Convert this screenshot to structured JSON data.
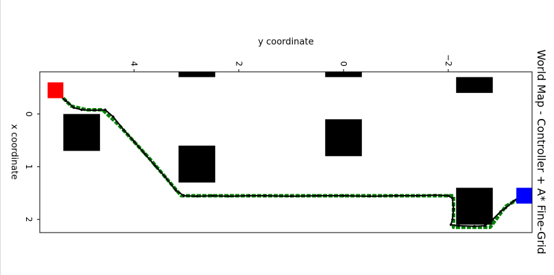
{
  "chart_data": {
    "type": "scatter",
    "title": "World Map -  Controller + A* Fine-Grid",
    "xlabel": "y coordinate",
    "ylabel": "x coordinate",
    "x_axis_inverted": true,
    "y_axis_inverted": true,
    "xlim": [
      5.8,
      -3.6
    ],
    "ylim": [
      -0.8,
      2.25
    ],
    "xticks": [
      {
        "value": 4,
        "label": "4"
      },
      {
        "value": 2,
        "label": "2"
      },
      {
        "value": 0,
        "label": "0"
      },
      {
        "value": -2,
        "label": "−2"
      }
    ],
    "yticks": [
      {
        "value": 0,
        "label": "0"
      },
      {
        "value": 1,
        "label": "1"
      },
      {
        "value": 2,
        "label": "2"
      }
    ],
    "grid": false,
    "colors": {
      "start": "#ff0000",
      "goal": "#0000ff",
      "obstacle": "#000000",
      "planned_path": "#008000",
      "actual_path": "#000000"
    },
    "start": {
      "y": 5.5,
      "x": -0.45,
      "size": 0.3
    },
    "goal": {
      "y": -3.45,
      "x": 1.55,
      "size": 0.3
    },
    "obstacles": [
      {
        "y": 5.0,
        "x": 0.35,
        "w": 0.7,
        "h": 0.7
      },
      {
        "y": 2.8,
        "x": 0.95,
        "w": 0.7,
        "h": 0.7
      },
      {
        "y": 0.0,
        "x": 0.45,
        "w": 0.7,
        "h": 0.7
      },
      {
        "y": -2.5,
        "x": 1.75,
        "w": 0.7,
        "h": 0.7
      },
      {
        "y": 2.8,
        "x": -0.75,
        "w": 0.7,
        "h": 0.1
      },
      {
        "y": 0.0,
        "x": -0.75,
        "w": 0.7,
        "h": 0.1
      },
      {
        "y": -2.5,
        "x": -0.55,
        "w": 0.7,
        "h": 0.3
      }
    ],
    "planned_path": [
      [
        5.5,
        -0.45
      ],
      [
        5.2,
        -0.15
      ],
      [
        4.9,
        -0.08
      ],
      [
        4.6,
        -0.08
      ],
      [
        4.3,
        0.2
      ],
      [
        3.7,
        0.85
      ],
      [
        3.1,
        1.55
      ],
      [
        1.0,
        1.55
      ],
      [
        -1.0,
        1.55
      ],
      [
        -2.1,
        1.55
      ],
      [
        -2.1,
        2.15
      ],
      [
        -2.8,
        2.15
      ],
      [
        -3.1,
        1.75
      ],
      [
        -3.45,
        1.55
      ]
    ],
    "actual_path": [
      [
        5.55,
        -0.45
      ],
      [
        5.3,
        -0.25
      ],
      [
        5.15,
        -0.12
      ],
      [
        5.0,
        -0.08
      ],
      [
        4.75,
        -0.07
      ],
      [
        4.55,
        -0.08
      ],
      [
        4.4,
        0.05
      ],
      [
        4.2,
        0.3
      ],
      [
        4.0,
        0.52
      ],
      [
        3.8,
        0.75
      ],
      [
        3.6,
        0.98
      ],
      [
        3.4,
        1.2
      ],
      [
        3.2,
        1.45
      ],
      [
        3.05,
        1.55
      ],
      [
        2.8,
        1.56
      ],
      [
        2.5,
        1.55
      ],
      [
        2.2,
        1.56
      ],
      [
        1.8,
        1.55
      ],
      [
        1.5,
        1.55
      ],
      [
        1.0,
        1.56
      ],
      [
        0.5,
        1.55
      ],
      [
        0.0,
        1.55
      ],
      [
        -0.5,
        1.56
      ],
      [
        -1.0,
        1.55
      ],
      [
        -1.4,
        1.55
      ],
      [
        -1.75,
        1.54
      ],
      [
        -2.0,
        1.55
      ],
      [
        -2.08,
        1.6
      ],
      [
        -2.1,
        1.8
      ],
      [
        -2.08,
        2.0
      ],
      [
        -2.05,
        2.1
      ],
      [
        -2.2,
        2.12
      ],
      [
        -2.5,
        2.13
      ],
      [
        -2.7,
        2.12
      ],
      [
        -2.85,
        2.0
      ],
      [
        -3.0,
        1.85
      ],
      [
        -3.1,
        1.78
      ],
      [
        -3.25,
        1.65
      ],
      [
        -3.4,
        1.55
      ],
      [
        -3.55,
        1.55
      ]
    ]
  }
}
